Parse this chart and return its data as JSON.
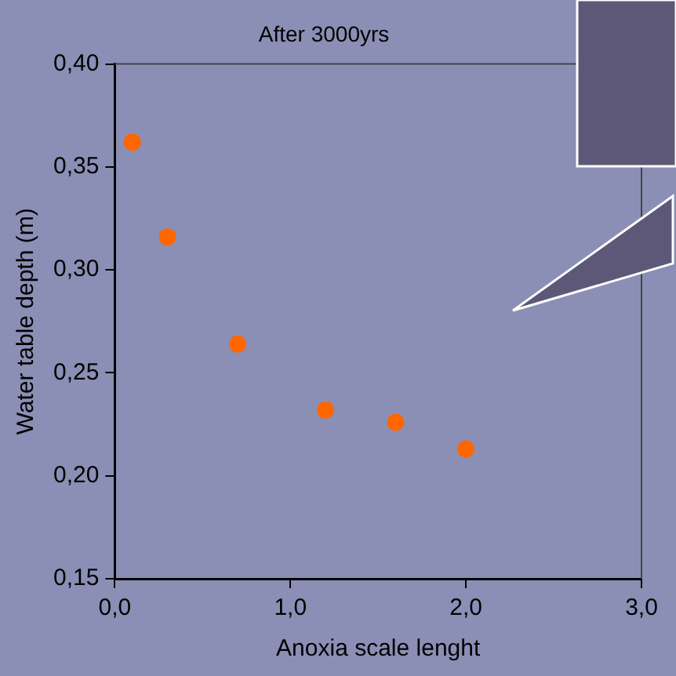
{
  "chart_data": {
    "type": "scatter",
    "title": "After 3000yrs",
    "xlabel": "Anoxia scale lenght",
    "ylabel": "Water table depth (m)",
    "x": [
      0.1,
      0.3,
      0.7,
      1.2,
      1.6,
      2.0
    ],
    "series": [
      {
        "color": "#ff6600",
        "values": [
          0.362,
          0.316,
          0.264,
          0.232,
          0.226,
          0.213
        ]
      }
    ],
    "xlim": [
      0,
      3
    ],
    "xticks": [
      {
        "value": 0,
        "label": "0,0"
      },
      {
        "value": 1,
        "label": "1,0"
      },
      {
        "value": 2,
        "label": "2,0"
      },
      {
        "value": 3,
        "label": "3,0"
      }
    ],
    "ylim": [
      0.15,
      0.4
    ],
    "yticks": [
      {
        "value": 0.15,
        "label": "0,15"
      },
      {
        "value": 0.2,
        "label": "0,20"
      },
      {
        "value": 0.25,
        "label": "0,25"
      },
      {
        "value": 0.3,
        "label": "0,30"
      },
      {
        "value": 0.35,
        "label": "0,35"
      },
      {
        "value": 0.4,
        "label": "0,40"
      }
    ],
    "grid": false,
    "legend": false,
    "marker": "circle"
  }
}
